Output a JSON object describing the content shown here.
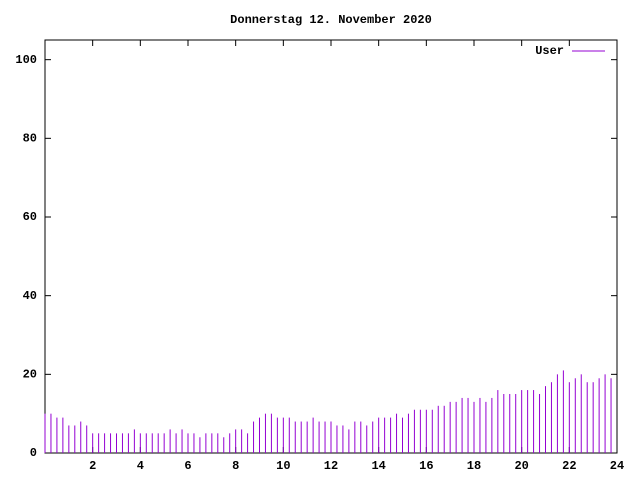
{
  "chart_data": {
    "type": "impulses",
    "title": "Donnerstag 12. November 2020",
    "x": [
      0,
      0.25,
      0.5,
      0.75,
      1,
      1.25,
      1.5,
      1.75,
      2,
      2.25,
      2.5,
      2.75,
      3,
      3.25,
      3.5,
      3.75,
      4,
      4.25,
      4.5,
      4.75,
      5,
      5.25,
      5.5,
      5.75,
      6,
      6.25,
      6.5,
      6.75,
      7,
      7.25,
      7.5,
      7.75,
      8,
      8.25,
      8.5,
      8.75,
      9,
      9.25,
      9.5,
      9.75,
      10,
      10.25,
      10.5,
      10.75,
      11,
      11.25,
      11.5,
      11.75,
      12,
      12.25,
      12.5,
      12.75,
      13,
      13.25,
      13.5,
      13.75,
      14,
      14.25,
      14.5,
      14.75,
      15,
      15.25,
      15.5,
      15.75,
      16,
      16.25,
      16.5,
      16.75,
      17,
      17.25,
      17.5,
      17.75,
      18,
      18.25,
      18.5,
      18.75,
      19,
      19.25,
      19.5,
      19.75,
      20,
      20.25,
      20.5,
      20.75,
      21,
      21.25,
      21.5,
      21.75,
      22,
      22.25,
      22.5,
      22.75,
      23,
      23.25,
      23.5,
      23.75
    ],
    "series": [
      {
        "name": "User",
        "color": "#9400d3",
        "values": [
          10,
          10,
          9,
          9,
          7,
          7,
          8,
          7,
          5,
          5,
          5,
          5,
          5,
          5,
          5,
          6,
          5,
          5,
          5,
          5,
          5,
          6,
          5,
          6,
          5,
          5,
          4,
          5,
          5,
          5,
          4,
          5,
          6,
          6,
          5,
          8,
          9,
          10,
          10,
          9,
          9,
          9,
          8,
          8,
          8,
          9,
          8,
          8,
          8,
          7,
          7,
          6,
          8,
          8,
          7,
          8,
          9,
          9,
          9,
          10,
          9,
          10,
          11,
          11,
          11,
          11,
          12,
          12,
          13,
          13,
          14,
          14,
          13,
          14,
          13,
          14,
          16,
          15,
          15,
          15,
          16,
          16,
          16,
          15,
          17,
          18,
          20,
          21,
          18,
          19,
          20,
          18,
          18,
          19,
          20,
          19
        ]
      }
    ],
    "xlim": [
      0,
      24
    ],
    "xticks": [
      2,
      4,
      6,
      8,
      10,
      12,
      14,
      16,
      18,
      20,
      22,
      24
    ],
    "ylim": [
      0,
      105
    ],
    "yticks": [
      0,
      20,
      40,
      60,
      80,
      100
    ],
    "legend": "top-right"
  }
}
